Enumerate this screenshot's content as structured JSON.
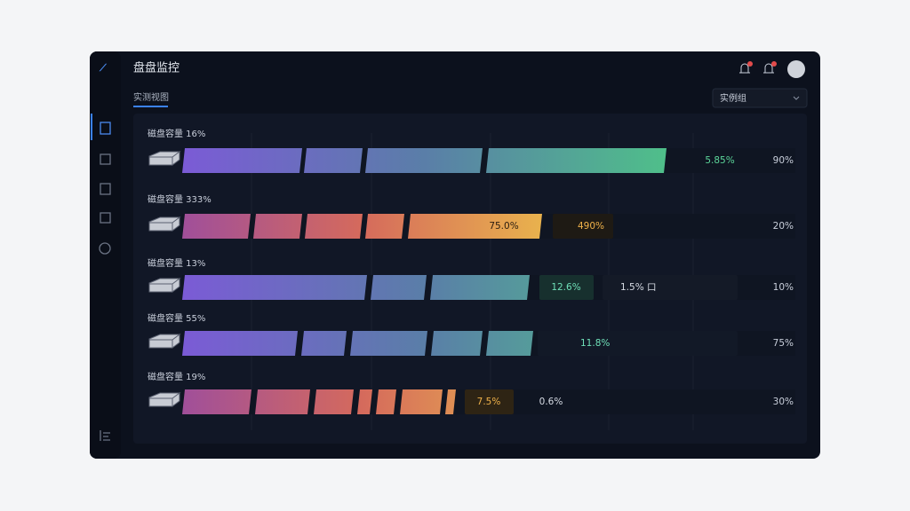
{
  "header": {
    "title": "盘盘监控",
    "tab": "实测视图",
    "dropdown": "实例组"
  },
  "rows": [
    {
      "label": "磁盘容量 16%",
      "tags": [
        "5.85%"
      ],
      "end": "90%"
    },
    {
      "label": "磁盘容量 333%",
      "tags": [
        "75.0%",
        "490%"
      ],
      "end": "20%"
    },
    {
      "label": "磁盘容量 13%",
      "tags": [
        "12.6%",
        "1.5% 口"
      ],
      "end": "10%"
    },
    {
      "label": "磁盘容量 55%",
      "tags": [
        "11.8%"
      ],
      "end": "75%"
    },
    {
      "label": "磁盘容量 19%",
      "tags": [
        "7.5%",
        "0.6%"
      ],
      "end": "30%"
    }
  ]
}
